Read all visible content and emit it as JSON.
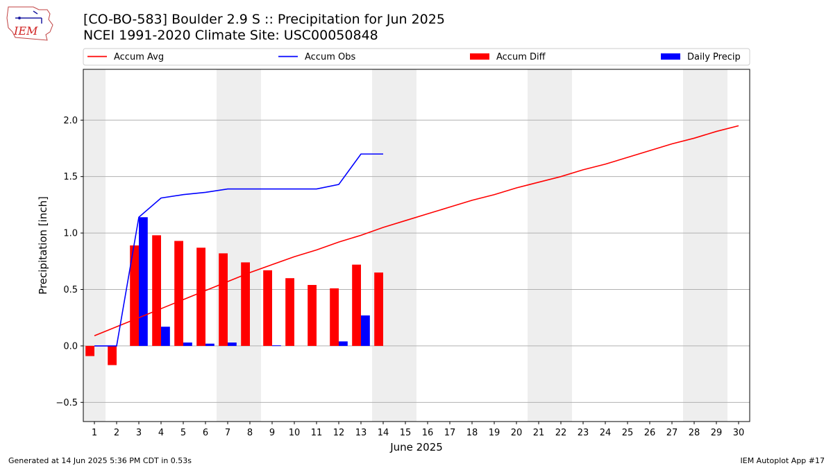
{
  "header": {
    "title_line1": "[CO-BO-583] Boulder 2.9 S :: Precipitation for Jun 2025",
    "title_line2": "NCEI 1991-2020 Climate Site: USC00050848",
    "logo_text": "IEM"
  },
  "footer": {
    "generated": "Generated at 14 Jun 2025 5:36 PM CDT in 0.53s",
    "app": "IEM Autoplot App #17"
  },
  "chart_data": {
    "type": "bar",
    "xlabel": "June 2025",
    "ylabel": "Precipitation [inch]",
    "ylim": [
      -0.67,
      2.45
    ],
    "xlim": [
      0.5,
      30.5
    ],
    "yticks": [
      -0.5,
      0.0,
      0.5,
      1.0,
      1.5,
      2.0
    ],
    "ytick_labels": [
      "−0.5",
      "0.0",
      "0.5",
      "1.0",
      "1.5",
      "2.0"
    ],
    "days": [
      1,
      2,
      3,
      4,
      5,
      6,
      7,
      8,
      9,
      10,
      11,
      12,
      13,
      14,
      15,
      16,
      17,
      18,
      19,
      20,
      21,
      22,
      23,
      24,
      25,
      26,
      27,
      28,
      29,
      30
    ],
    "weekend_days": [
      1,
      7,
      8,
      14,
      15,
      21,
      22,
      28,
      29
    ],
    "grid": "horizontal",
    "legend": {
      "position": "top",
      "entries": [
        {
          "label": "Accum Avg",
          "kind": "line",
          "color": "#ff0000"
        },
        {
          "label": "Accum Obs",
          "kind": "line",
          "color": "#0000ff"
        },
        {
          "label": "Accum Diff",
          "kind": "bar",
          "color": "#ff0000"
        },
        {
          "label": "Daily Precip",
          "kind": "bar",
          "color": "#0000ff"
        }
      ]
    },
    "series": [
      {
        "name": "Accum Avg",
        "kind": "line",
        "color": "#ff0000",
        "x": [
          1,
          2,
          3,
          4,
          5,
          6,
          7,
          8,
          9,
          10,
          11,
          12,
          13,
          14,
          15,
          16,
          17,
          18,
          19,
          20,
          21,
          22,
          23,
          24,
          25,
          26,
          27,
          28,
          29,
          30
        ],
        "values": [
          0.09,
          0.17,
          0.25,
          0.33,
          0.41,
          0.49,
          0.57,
          0.65,
          0.72,
          0.79,
          0.85,
          0.92,
          0.98,
          1.05,
          1.11,
          1.17,
          1.23,
          1.29,
          1.34,
          1.4,
          1.45,
          1.5,
          1.56,
          1.61,
          1.67,
          1.73,
          1.79,
          1.84,
          1.9,
          1.95
        ]
      },
      {
        "name": "Accum Obs",
        "kind": "line",
        "color": "#0000ff",
        "x": [
          1,
          2,
          3,
          4,
          5,
          6,
          7,
          8,
          9,
          10,
          11,
          12,
          13,
          14
        ],
        "values": [
          0.0,
          0.0,
          1.14,
          1.31,
          1.34,
          1.36,
          1.39,
          1.39,
          1.39,
          1.39,
          1.39,
          1.43,
          1.7,
          1.7
        ]
      },
      {
        "name": "Accum Diff",
        "kind": "bar",
        "color": "#ff0000",
        "offset": "left",
        "x": [
          1,
          2,
          3,
          4,
          5,
          6,
          7,
          8,
          9,
          10,
          11,
          12,
          13,
          14
        ],
        "values": [
          -0.09,
          -0.17,
          0.89,
          0.98,
          0.93,
          0.87,
          0.82,
          0.74,
          0.67,
          0.6,
          0.54,
          0.51,
          0.72,
          0.65
        ]
      },
      {
        "name": "Daily Precip",
        "kind": "bar",
        "color": "#0000ff",
        "offset": "right",
        "x": [
          1,
          2,
          3,
          4,
          5,
          6,
          7,
          8,
          9,
          10,
          11,
          12,
          13,
          14
        ],
        "values": [
          0.0,
          0.0,
          1.14,
          0.17,
          0.03,
          0.02,
          0.03,
          0.0,
          0.005,
          0.0,
          0.0,
          0.04,
          0.27,
          0.0
        ]
      }
    ]
  }
}
